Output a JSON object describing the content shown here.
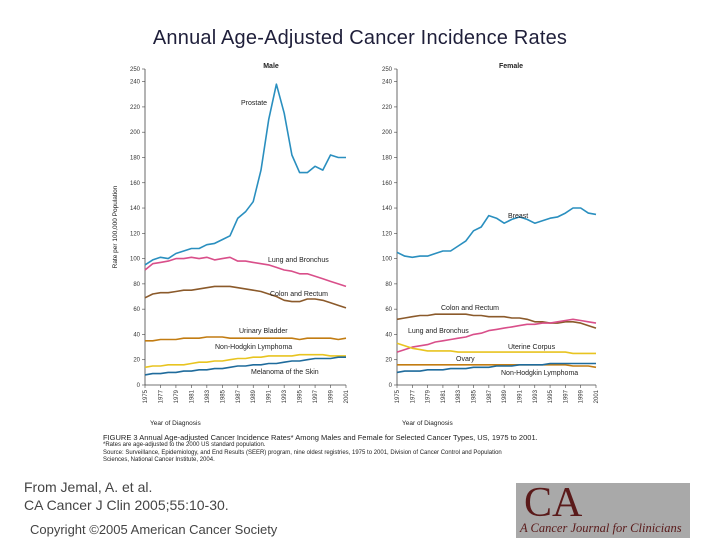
{
  "slide_title": "Annual Age-Adjusted Cancer Incidence Rates",
  "source_line1": "From Jemal, A. et al.",
  "source_line2": "CA Cancer J Clin 2005;55:10-30.",
  "copyright": "Copyright ©2005 American Cancer Society",
  "logo": {
    "mark": "CA",
    "journal": "A Cancer Journal for Clinicians"
  },
  "caption": {
    "title": "FIGURE 3   Annual Age-adjusted Cancer Incidence Rates* Among Males and Female for Selected Cancer Types, US, 1975 to 2001.",
    "note1": "*Rates are age-adjusted to the 2000 US standard population.",
    "note2": "Source: Surveillance, Epidemiology, and End Results (SEER) program, nine oldest registries, 1975 to 2001, Division of Cancer Control and Population",
    "note3": "Sciences, National Cancer Institute, 2004."
  },
  "chart_data": [
    {
      "type": "line",
      "title": "Male",
      "ylabel": "Rate per 100,000 Population",
      "xlabel": "Year of Diagnosis",
      "ylim": [
        0,
        250
      ],
      "xlim": [
        1975,
        2001
      ],
      "yticks": [
        "0",
        "20",
        "40",
        "60",
        "80",
        "100",
        "120",
        "140",
        "160",
        "180",
        "200",
        "220",
        "240",
        "250"
      ],
      "xticks": [
        "1975",
        "1977",
        "1979",
        "1981",
        "1983",
        "1985",
        "1987",
        "1989",
        "1991",
        "1993",
        "1995",
        "1997",
        "1999",
        "2001"
      ],
      "x": [
        1975,
        1976,
        1977,
        1978,
        1979,
        1980,
        1981,
        1982,
        1983,
        1984,
        1985,
        1986,
        1987,
        1988,
        1989,
        1990,
        1991,
        1992,
        1993,
        1994,
        1995,
        1996,
        1997,
        1998,
        1999,
        2000,
        2001
      ],
      "series": [
        {
          "name": "Prostate",
          "color": "#2a8fbf",
          "values": [
            95,
            99,
            101,
            100,
            104,
            106,
            108,
            108,
            111,
            112,
            115,
            118,
            132,
            137,
            145,
            170,
            210,
            238,
            215,
            182,
            168,
            168,
            173,
            170,
            182,
            180,
            180
          ]
        },
        {
          "name": "Lung and Bronchus",
          "color": "#d94f8a",
          "values": [
            91,
            96,
            97,
            98,
            100,
            100,
            101,
            100,
            101,
            99,
            100,
            101,
            98,
            98,
            97,
            96,
            95,
            93,
            91,
            90,
            88,
            88,
            86,
            84,
            82,
            80,
            78
          ]
        },
        {
          "name": "Colon and Rectum",
          "color": "#8b5a2b",
          "values": [
            69,
            72,
            73,
            73,
            74,
            75,
            75,
            76,
            77,
            78,
            78,
            78,
            77,
            76,
            75,
            74,
            72,
            70,
            67,
            66,
            66,
            68,
            68,
            67,
            65,
            63,
            61
          ]
        },
        {
          "name": "Urinary Bladder",
          "color": "#c27c12",
          "values": [
            35,
            35,
            36,
            36,
            36,
            37,
            37,
            37,
            38,
            38,
            38,
            37,
            37,
            37,
            37,
            37,
            37,
            37,
            37,
            37,
            36,
            37,
            37,
            37,
            37,
            36,
            37
          ]
        },
        {
          "name": "Non-Hodgkin Lymphoma",
          "color": "#e8c420",
          "values": [
            14,
            15,
            15,
            16,
            16,
            16,
            17,
            18,
            18,
            19,
            19,
            20,
            21,
            21,
            22,
            22,
            23,
            23,
            23,
            23,
            24,
            24,
            24,
            24,
            23,
            23,
            23
          ]
        },
        {
          "name": "Melanoma of the Skin",
          "color": "#1f6b9c",
          "values": [
            8,
            9,
            9,
            10,
            10,
            11,
            11,
            12,
            12,
            13,
            13,
            14,
            15,
            15,
            16,
            16,
            17,
            17,
            18,
            19,
            19,
            20,
            21,
            21,
            21,
            22,
            22
          ]
        }
      ]
    },
    {
      "type": "line",
      "title": "Female",
      "xlabel": "Year of Diagnosis",
      "ylim": [
        0,
        250
      ],
      "xlim": [
        1975,
        2001
      ],
      "yticks": [
        "0",
        "20",
        "40",
        "60",
        "80",
        "100",
        "120",
        "140",
        "160",
        "180",
        "200",
        "220",
        "240",
        "250"
      ],
      "xticks": [
        "1975",
        "1977",
        "1979",
        "1981",
        "1983",
        "1985",
        "1987",
        "1989",
        "1991",
        "1993",
        "1995",
        "1997",
        "1999",
        "2001"
      ],
      "x": [
        1975,
        1976,
        1977,
        1978,
        1979,
        1980,
        1981,
        1982,
        1983,
        1984,
        1985,
        1986,
        1987,
        1988,
        1989,
        1990,
        1991,
        1992,
        1993,
        1994,
        1995,
        1996,
        1997,
        1998,
        1999,
        2000,
        2001
      ],
      "series": [
        {
          "name": "Breast",
          "color": "#2a8fbf",
          "values": [
            105,
            102,
            101,
            102,
            102,
            104,
            106,
            106,
            110,
            114,
            122,
            125,
            134,
            132,
            128,
            131,
            133,
            131,
            128,
            130,
            132,
            133,
            136,
            140,
            140,
            136,
            135
          ]
        },
        {
          "name": "Colon and Rectum",
          "color": "#8b5a2b",
          "values": [
            52,
            53,
            54,
            55,
            55,
            56,
            56,
            56,
            56,
            56,
            55,
            55,
            54,
            54,
            54,
            53,
            53,
            52,
            50,
            50,
            49,
            49,
            50,
            50,
            49,
            47,
            45
          ]
        },
        {
          "name": "Lung and Bronchus",
          "color": "#d94f8a",
          "values": [
            26,
            28,
            30,
            31,
            32,
            34,
            35,
            36,
            37,
            38,
            40,
            41,
            43,
            44,
            45,
            46,
            47,
            48,
            48,
            49,
            49,
            50,
            51,
            52,
            51,
            50,
            49
          ]
        },
        {
          "name": "Uterine Corpus",
          "color": "#e8c420",
          "values": [
            33,
            31,
            29,
            28,
            27,
            27,
            27,
            27,
            26,
            26,
            26,
            26,
            26,
            26,
            26,
            26,
            26,
            26,
            26,
            26,
            26,
            26,
            26,
            25,
            25,
            25,
            25
          ]
        },
        {
          "name": "Ovary",
          "color": "#c27c12",
          "values": [
            16,
            16,
            16,
            16,
            16,
            16,
            16,
            16,
            16,
            16,
            16,
            16,
            16,
            16,
            16,
            16,
            16,
            16,
            16,
            16,
            16,
            16,
            16,
            15,
            15,
            15,
            14
          ]
        },
        {
          "name": "Non-Hodgkin Lymphoma",
          "color": "#1f6b9c",
          "values": [
            10,
            11,
            11,
            11,
            12,
            12,
            12,
            13,
            13,
            13,
            14,
            14,
            14,
            15,
            15,
            15,
            16,
            16,
            16,
            16,
            17,
            17,
            17,
            17,
            17,
            17,
            17
          ]
        }
      ]
    }
  ]
}
